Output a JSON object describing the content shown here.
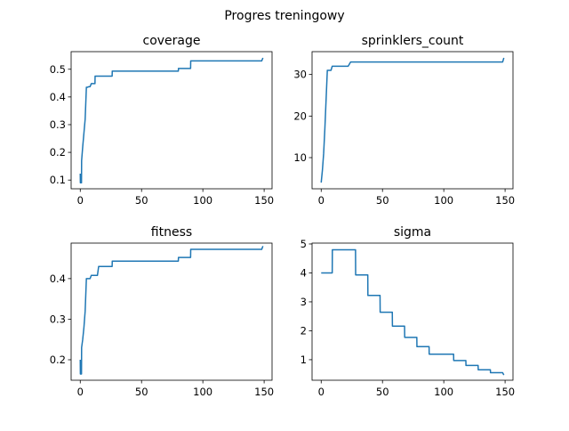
{
  "figure": {
    "suptitle": "Progres treningowy"
  },
  "chart_data": [
    {
      "type": "line",
      "title": "coverage",
      "xlabel": "",
      "ylabel": "",
      "xlim": [
        -7.45,
        156.45
      ],
      "ylim": [
        0.0685,
        0.5635
      ],
      "xticks": [
        0,
        50,
        100,
        150
      ],
      "yticks": [
        0.1,
        0.2,
        0.3,
        0.4,
        0.5
      ],
      "ytick_labels": [
        "0.1",
        "0.2",
        "0.3",
        "0.4",
        "0.5"
      ],
      "color": "#1f77b4",
      "x": [
        0,
        0.1,
        1,
        1.1,
        2,
        3,
        4,
        5,
        6,
        7,
        8,
        9,
        10,
        12,
        12.1,
        15,
        17,
        19,
        20,
        22,
        24,
        26,
        26.1,
        50,
        80,
        80.1,
        88,
        90,
        90.1,
        120,
        148,
        149
      ],
      "y": [
        0.123,
        0.09,
        0.09,
        0.17,
        0.22,
        0.27,
        0.32,
        0.435,
        0.435,
        0.437,
        0.437,
        0.448,
        0.448,
        0.448,
        0.475,
        0.475,
        0.475,
        0.475,
        0.475,
        0.475,
        0.475,
        0.475,
        0.493,
        0.493,
        0.493,
        0.503,
        0.503,
        0.503,
        0.53,
        0.53,
        0.53,
        0.541
      ]
    },
    {
      "type": "line",
      "title": "sprinklers_count",
      "xlabel": "",
      "ylabel": "",
      "xlim": [
        -7.45,
        156.45
      ],
      "ylim": [
        2.5,
        35.5
      ],
      "xticks": [
        0,
        50,
        100,
        150
      ],
      "yticks": [
        10,
        20,
        30
      ],
      "ytick_labels": [
        "10",
        "20",
        "30"
      ],
      "color": "#1f77b4",
      "x": [
        0,
        1,
        2,
        3,
        4,
        5,
        6,
        7,
        8,
        9,
        10,
        12,
        14,
        16,
        18,
        20,
        22,
        24,
        26,
        50,
        100,
        148,
        149
      ],
      "y": [
        4,
        7,
        11,
        17,
        24,
        31,
        31,
        31,
        31,
        32,
        32,
        32,
        32,
        32,
        32,
        32,
        32,
        33,
        33,
        33,
        33,
        33,
        34
      ]
    },
    {
      "type": "line",
      "title": "fitness",
      "xlabel": "",
      "ylabel": "",
      "xlim": [
        -7.45,
        156.45
      ],
      "ylim": [
        0.1495,
        0.4875
      ],
      "xticks": [
        0,
        50,
        100,
        150
      ],
      "yticks": [
        0.2,
        0.3,
        0.4
      ],
      "ytick_labels": [
        "0.2",
        "0.3",
        "0.4"
      ],
      "color": "#1f77b4",
      "x": [
        0,
        0.1,
        1,
        1.1,
        2,
        3,
        4,
        5,
        6,
        7,
        8,
        9,
        10,
        12,
        14,
        15,
        20,
        25,
        26,
        26.1,
        50,
        80,
        80.1,
        88,
        90,
        90.1,
        120,
        148,
        149
      ],
      "y": [
        0.2,
        0.165,
        0.165,
        0.23,
        0.25,
        0.28,
        0.32,
        0.4,
        0.4,
        0.4,
        0.4,
        0.408,
        0.408,
        0.408,
        0.408,
        0.43,
        0.43,
        0.43,
        0.43,
        0.443,
        0.443,
        0.443,
        0.452,
        0.452,
        0.452,
        0.472,
        0.472,
        0.472,
        0.48
      ]
    },
    {
      "type": "line",
      "title": "sigma",
      "xlabel": "",
      "ylabel": "",
      "xlim": [
        -7.45,
        156.45
      ],
      "ylim": [
        0.29,
        5.03
      ],
      "xticks": [
        0,
        50,
        100,
        150
      ],
      "yticks": [
        1,
        2,
        3,
        4,
        5
      ],
      "ytick_labels": [
        "1",
        "2",
        "3",
        "4",
        "5"
      ],
      "color": "#1f77b4",
      "x": [
        0,
        9,
        9.1,
        28,
        28.1,
        38,
        38.1,
        48,
        48.1,
        58,
        58.1,
        68,
        68.1,
        78,
        78.1,
        88,
        88.1,
        108,
        108.1,
        118,
        118.1,
        128,
        128.1,
        138,
        138.1,
        148,
        149
      ],
      "y": [
        4.0,
        4.0,
        4.8,
        4.8,
        3.93,
        3.93,
        3.22,
        3.22,
        2.64,
        2.64,
        2.16,
        2.16,
        1.77,
        1.77,
        1.45,
        1.45,
        1.19,
        1.19,
        0.97,
        0.97,
        0.8,
        0.8,
        0.65,
        0.65,
        0.55,
        0.55,
        0.47
      ]
    }
  ]
}
